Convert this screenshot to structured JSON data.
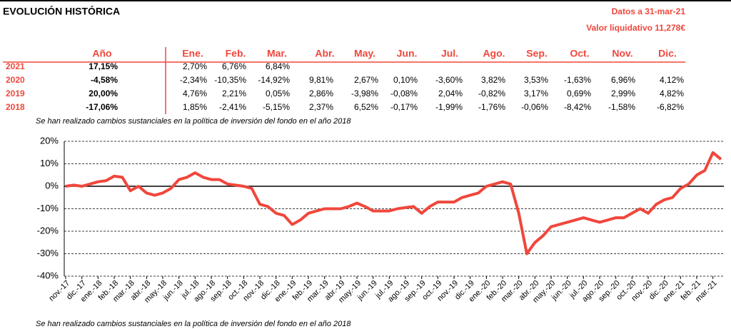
{
  "header": {
    "title": "EVOLUCIÓN HISTÓRICA",
    "date": "Datos a 31-mar-21",
    "nav": "Valor liquidativo 11,278€"
  },
  "table": {
    "columns": [
      "Año",
      "Ene.",
      "Feb.",
      "Mar.",
      "Abr.",
      "May.",
      "Jun.",
      "Jul.",
      "Ago.",
      "Sep.",
      "Oct.",
      "Nov.",
      "Dic."
    ],
    "rows": [
      {
        "year": "2021",
        "annual": "17,15%",
        "months": [
          "2,70%",
          "6,76%",
          "6,84%"
        ]
      },
      {
        "year": "2020",
        "annual": "-4,58%",
        "months": [
          "-2,34%",
          "-10,35%",
          "-14,92%",
          "9,81%",
          "2,67%",
          "0,10%",
          "-3,60%",
          "3,82%",
          "3,53%",
          "-1,63%",
          "6,96%",
          "4,12%"
        ]
      },
      {
        "year": "2019",
        "annual": "20,00%",
        "months": [
          "4,76%",
          "2,21%",
          "0,05%",
          "2,86%",
          "-3,98%",
          "-0,08%",
          "2,04%",
          "-0,82%",
          "3,17%",
          "0,69%",
          "2,99%",
          "4,82%"
        ]
      },
      {
        "year": "2018",
        "annual": "-17,06%",
        "months": [
          "1,85%",
          "-2,41%",
          "-5,15%",
          "2,37%",
          "6,52%",
          "-0,17%",
          "-1,99%",
          "-1,76%",
          "-0,06%",
          "-8,42%",
          "-1,58%",
          "-6,82%"
        ]
      }
    ]
  },
  "note": "Se han realizado cambios sustanciales en la política de inversión del fondo en el año 2018",
  "chart_data": {
    "type": "line",
    "categories": [
      "nov.-17",
      null,
      "dic.-17",
      null,
      "ene.-18",
      null,
      "feb.-18",
      null,
      "mar.-18",
      null,
      "abr.-18",
      null,
      "may.-18",
      null,
      "jun.-18",
      null,
      "jul.-18",
      null,
      "ago.-18",
      null,
      "sep.-18",
      null,
      "oct.-18",
      null,
      "nov.-18",
      null,
      "dic.-18",
      null,
      "ene.-19",
      null,
      "feb.-19",
      null,
      "mar.-19",
      null,
      "abr.-19",
      null,
      "may.-19",
      null,
      "jun.-19",
      null,
      "jul.-19",
      null,
      "ago.-19",
      null,
      "sep.-19",
      null,
      "oct.-19",
      null,
      "nov.-19",
      null,
      "dic.-19",
      null,
      "ene.-20",
      null,
      "feb.-20",
      null,
      "mar.-20",
      null,
      "abr.-20",
      null,
      "may.-20",
      null,
      "jun.-20",
      null,
      "jul.-20",
      null,
      "ago.-20",
      null,
      "sep.-20",
      null,
      "oct.-20",
      null,
      "nov.-20",
      null,
      "dic.-20",
      null,
      "ene.-21",
      null,
      "feb.-21",
      null,
      "mar.-21",
      null
    ],
    "series": [
      {
        "color": "#f0473c",
        "values": [
          0,
          0.5,
          0,
          1,
          2,
          2.5,
          4.5,
          4,
          -2,
          0,
          -3,
          -4,
          -3,
          -1,
          3,
          4,
          6,
          4,
          3,
          3,
          1,
          0.5,
          0,
          -1,
          -8,
          -9,
          -12,
          -13,
          -17,
          -15,
          -12,
          -11,
          -10,
          -10,
          -10,
          -9,
          -7.5,
          -9,
          -11,
          -11,
          -11,
          -10,
          -9.5,
          -9,
          -12,
          -9,
          -7,
          -7,
          -7,
          -5,
          -4,
          -3,
          0,
          1,
          2,
          1,
          -12,
          -30,
          -25,
          -22,
          -18,
          -17,
          -16,
          -15,
          -14,
          -15,
          -16,
          -15,
          -14,
          -14,
          -12,
          -10,
          -12,
          -8,
          -6,
          -5,
          -1,
          1,
          5,
          7,
          15,
          12
        ]
      }
    ],
    "ylim": [
      -40,
      20
    ],
    "yticks": [
      {
        "value": -40,
        "label": "-40%"
      },
      {
        "value": -30,
        "label": "-30%"
      },
      {
        "value": -20,
        "label": "-20%"
      },
      {
        "value": -10,
        "label": "-10%"
      },
      {
        "value": 0,
        "label": "0%"
      },
      {
        "value": 10,
        "label": "10%"
      },
      {
        "value": 20,
        "label": "20%"
      }
    ],
    "grid": true
  }
}
